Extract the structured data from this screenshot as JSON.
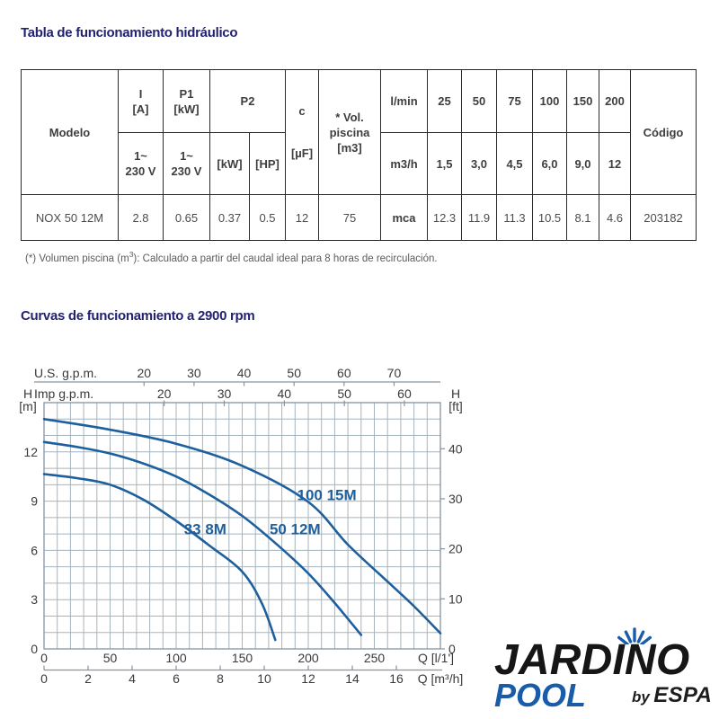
{
  "titles": {
    "hydraulic_table": "Tabla de funcionamiento hidráulico",
    "curves": "Curvas de funcionamiento a 2900 rpm"
  },
  "footnote": {
    "prefix": "(*) Volumen piscina (m",
    "sup": "3",
    "suffix": "): Calculado a partir del caudal ideal para 8 horas de recirculación."
  },
  "table": {
    "header": {
      "modelo": "Modelo",
      "i_l1": "I",
      "i_l2": "[A]",
      "p1_l1": "P1",
      "p1_l2": "[kW]",
      "p2": "P2",
      "volt_l1": "1~",
      "volt_l2": "230 V",
      "p2_kw": "[kW]",
      "p2_hp": "[HP]",
      "c": "c",
      "c_unit": "[µF]",
      "vol_l1": "* Vol.",
      "vol_l2": "piscina",
      "vol_l3": "[m3]",
      "lmin": "l/min",
      "m3h": "m3/h",
      "flow_lmin": [
        "25",
        "50",
        "75",
        "100",
        "150",
        "200"
      ],
      "flow_m3h": [
        "1,5",
        "3,0",
        "4,5",
        "6,0",
        "9,0",
        "12"
      ],
      "codigo": "Código"
    },
    "row": {
      "modelo": "NOX 50 12M",
      "i": "2.8",
      "p1": "0.65",
      "p2_kw": "0.37",
      "p2_hp": "0.5",
      "c": "12",
      "vol": "75",
      "unit": "mca",
      "mca": [
        "12.3",
        "11.9",
        "11.3",
        "10.5",
        "8.1",
        "4.6"
      ],
      "codigo": "203182"
    }
  },
  "chart_data": {
    "type": "line",
    "title": "Curvas de funcionamiento a 2900 rpm",
    "rpm": "2900",
    "grid": {
      "x_minor_step_lmin": 10,
      "y_minor_step_m": 1
    },
    "x_axis": {
      "label": "Q [l/1']",
      "ticks": [
        0,
        50,
        100,
        150,
        200,
        250
      ],
      "range": [
        0,
        300
      ]
    },
    "x_axis_m3h": {
      "label": "Q [m³/h]",
      "ticks": [
        0,
        2,
        4,
        6,
        8,
        10,
        12,
        14,
        16
      ],
      "lmin_per_unit": 16.6667
    },
    "x_axis_usgpm": {
      "label": "U.S. g.p.m.",
      "ticks": [
        20,
        30,
        40,
        50,
        60,
        70
      ],
      "lmin_per_unit": 3.785
    },
    "x_axis_impgpm": {
      "label": "Imp g.p.m.",
      "ticks": [
        20,
        30,
        40,
        50,
        60
      ],
      "lmin_per_unit": 4.546
    },
    "y_axis": {
      "label": "H",
      "unit": "[m]",
      "ticks": [
        0,
        3,
        6,
        9,
        12
      ],
      "range": [
        0,
        15
      ]
    },
    "y_axis_ft": {
      "label": "H",
      "unit": "[ft]",
      "ticks": [
        0,
        10,
        20,
        30,
        40
      ],
      "m_per_unit": 0.3048
    },
    "series": [
      {
        "name": "33 8M",
        "label_at": [
          122,
          7.3
        ],
        "points": [
          [
            0,
            10.65
          ],
          [
            25,
            10.4
          ],
          [
            50,
            10.0
          ],
          [
            75,
            9.1
          ],
          [
            100,
            7.8
          ],
          [
            125,
            6.3
          ],
          [
            150,
            4.7
          ],
          [
            165,
            2.75
          ],
          [
            175,
            0.55
          ]
        ]
      },
      {
        "name": "50 12M",
        "label_at": [
          190,
          7.3
        ],
        "points": [
          [
            0,
            12.6
          ],
          [
            25,
            12.3
          ],
          [
            50,
            11.9
          ],
          [
            75,
            11.3
          ],
          [
            100,
            10.5
          ],
          [
            125,
            9.4
          ],
          [
            150,
            8.1
          ],
          [
            175,
            6.45
          ],
          [
            200,
            4.6
          ],
          [
            220,
            2.8
          ],
          [
            240,
            0.85
          ]
        ]
      },
      {
        "name": "100 15M",
        "label_at": [
          214,
          9.4
        ],
        "points": [
          [
            0,
            14.0
          ],
          [
            50,
            13.35
          ],
          [
            100,
            12.5
          ],
          [
            150,
            11.15
          ],
          [
            200,
            8.95
          ],
          [
            230,
            6.35
          ],
          [
            260,
            4.1
          ],
          [
            280,
            2.6
          ],
          [
            300,
            0.95
          ]
        ]
      }
    ]
  },
  "colors": {
    "curve_blue": "#1e5f9e",
    "grid_gray": "#a6b4bd",
    "axis_gray": "#8693a0",
    "tick_text": "#3a3a3a",
    "title_navy": "#232270",
    "logo_blue": "#1b5ca8",
    "logo_black": "#161616"
  },
  "logo": {
    "brand": "JARDINO",
    "sub": "POOL",
    "by": "by",
    "company": "ESPA"
  }
}
